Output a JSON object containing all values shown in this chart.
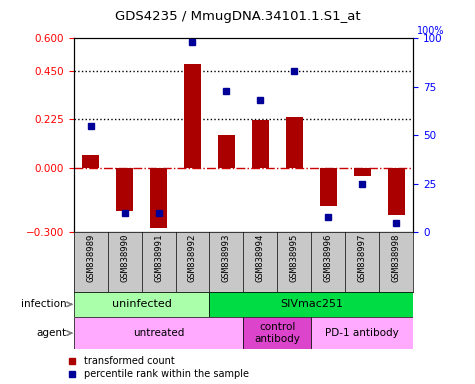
{
  "title": "GDS4235 / MmugDNA.34101.1.S1_at",
  "samples": [
    "GSM838989",
    "GSM838990",
    "GSM838991",
    "GSM838992",
    "GSM838993",
    "GSM838994",
    "GSM838995",
    "GSM838996",
    "GSM838997",
    "GSM838998"
  ],
  "red_bars": [
    0.06,
    -0.2,
    -0.28,
    0.48,
    0.15,
    0.22,
    0.235,
    -0.18,
    -0.04,
    -0.22
  ],
  "blue_squares_pct": [
    55,
    10,
    10,
    98,
    73,
    68,
    83,
    8,
    25,
    5
  ],
  "ylim_left": [
    -0.3,
    0.6
  ],
  "ylim_right": [
    0,
    100
  ],
  "yticks_left": [
    -0.3,
    0,
    0.225,
    0.45,
    0.6
  ],
  "yticks_right": [
    0,
    25,
    50,
    75,
    100
  ],
  "hlines": [
    0.225,
    0.45
  ],
  "bar_color": "#AA0000",
  "square_color": "#000099",
  "bg_color": "#FFFFFF",
  "title_fontsize": 9.5,
  "infection_groups": [
    {
      "label": "uninfected",
      "start": 0,
      "end": 4,
      "color": "#AAFFAA"
    },
    {
      "label": "SIVmac251",
      "start": 4,
      "end": 10,
      "color": "#00DD44"
    }
  ],
  "agent_groups": [
    {
      "label": "untreated",
      "start": 0,
      "end": 5,
      "color": "#FFAAFF"
    },
    {
      "label": "control\nantibody",
      "start": 5,
      "end": 7,
      "color": "#DD44CC"
    },
    {
      "label": "PD-1 antibody",
      "start": 7,
      "end": 10,
      "color": "#FFAAFF"
    }
  ],
  "sample_bg": "#C8C8C8",
  "infection_label": "infection",
  "agent_label": "agent",
  "legend_items": [
    {
      "color": "#AA0000",
      "label": "transformed count"
    },
    {
      "color": "#000099",
      "label": "percentile rank within the sample"
    }
  ]
}
